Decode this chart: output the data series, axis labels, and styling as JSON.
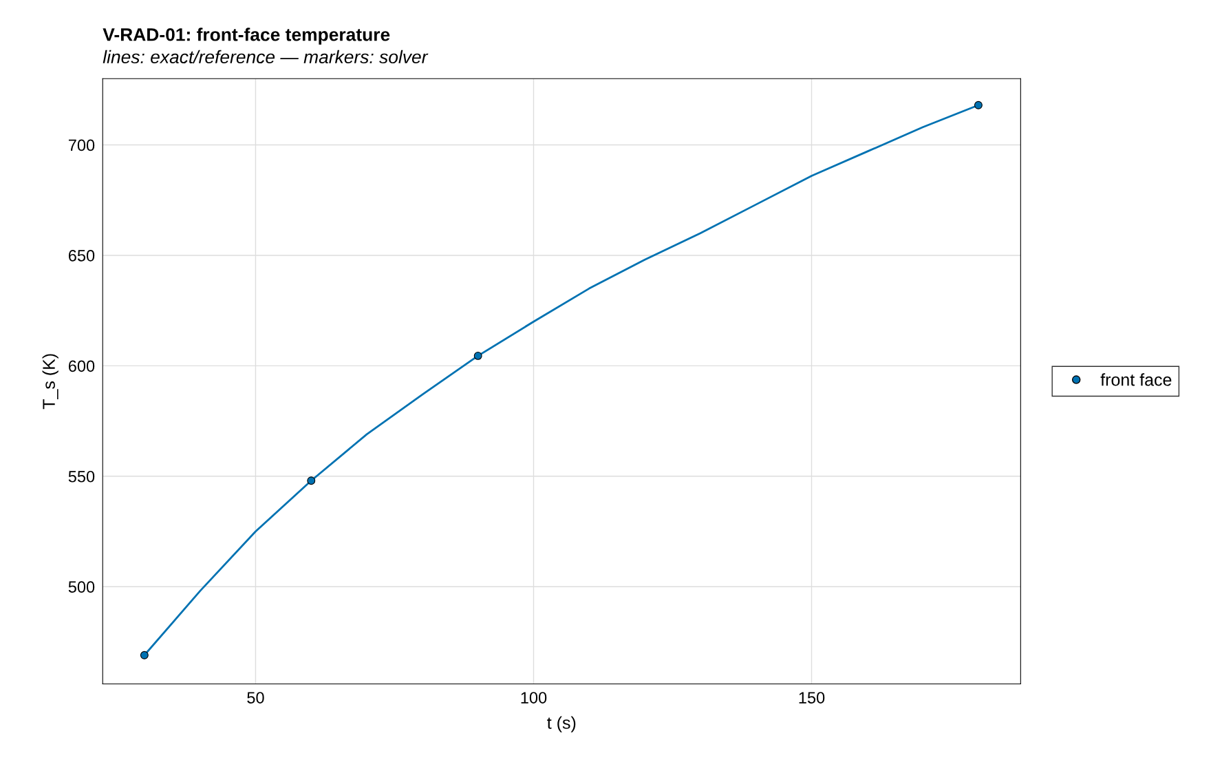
{
  "chart_data": {
    "type": "line",
    "title": "V-RAD-01: front-face temperature",
    "subtitle": "lines: exact/reference — markers: solver",
    "xlabel": "t (s)",
    "ylabel": "T_s (K)",
    "series": [
      {
        "color": "#0072b2",
        "marker": "none",
        "line_style": "solid",
        "x": [
          30,
          40,
          50,
          60,
          70,
          80,
          90,
          100,
          110,
          120,
          130,
          140,
          150,
          160,
          170,
          180
        ],
        "values": [
          469,
          498,
          525,
          548,
          569,
          587,
          604.5,
          620,
          635,
          648,
          660,
          673,
          686,
          697,
          708,
          718
        ]
      },
      {
        "type": "scatter",
        "name": "front face",
        "color": "#0072b2",
        "marker": "circle",
        "x": [
          30,
          60,
          90,
          180
        ],
        "values": [
          469,
          548,
          604.5,
          718
        ]
      }
    ],
    "xlim": [
      22.5,
      187.6
    ],
    "ylim": [
      456,
      730
    ],
    "xticks": [
      50,
      100,
      150
    ],
    "yticks": [
      500,
      550,
      600,
      650,
      700
    ],
    "grid": true,
    "legend": "right"
  }
}
